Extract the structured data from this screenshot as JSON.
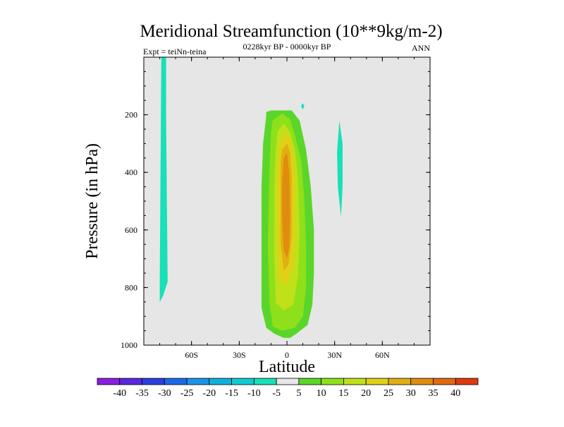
{
  "chart_data": {
    "type": "heatmap",
    "title": "Meridional Streamfunction (10**9kg/m-2)",
    "subtitle_left": "Expt = teiNn-teina",
    "subtitle_center": "0228kyr BP - 0000kyr BP",
    "subtitle_right": "ANN",
    "xlabel": "Latitude",
    "ylabel": "Pressure (in hPa)",
    "xlim": [
      -90,
      90
    ],
    "ylim": [
      0,
      1000
    ],
    "y_reversed": true,
    "x_ticks": [
      {
        "value": -60,
        "label": "60S"
      },
      {
        "value": -30,
        "label": "30S"
      },
      {
        "value": 0,
        "label": "0"
      },
      {
        "value": 30,
        "label": "30N"
      },
      {
        "value": 60,
        "label": "60N"
      }
    ],
    "y_ticks": [
      {
        "value": 200,
        "label": "200"
      },
      {
        "value": 400,
        "label": "400"
      },
      {
        "value": 600,
        "label": "600"
      },
      {
        "value": 800,
        "label": "800"
      },
      {
        "value": 1000,
        "label": "1000"
      }
    ],
    "background_color": "#e6e6e6",
    "levels": [
      {
        "label": "-40",
        "color": "#8a1ee0"
      },
      {
        "label": "-35",
        "color": "#5a28e0"
      },
      {
        "label": "-30",
        "color": "#2a40e0"
      },
      {
        "label": "-25",
        "color": "#1a6ae6"
      },
      {
        "label": "-20",
        "color": "#1a94e6"
      },
      {
        "label": "-15",
        "color": "#10b0dc"
      },
      {
        "label": "-10",
        "color": "#10ccd0"
      },
      {
        "label": "-5",
        "color": "#18e0b8"
      },
      {
        "label": "5",
        "color": "#e6e6e6"
      },
      {
        "label": "10",
        "color": "#5ad62a"
      },
      {
        "label": "15",
        "color": "#8ee01a"
      },
      {
        "label": "20",
        "color": "#c0e018"
      },
      {
        "label": "25",
        "color": "#e0d018"
      },
      {
        "label": "30",
        "color": "#e0b010"
      },
      {
        "label": "35",
        "color": "#e08c10"
      },
      {
        "label": "40",
        "color": "#e06a10"
      },
      {
        "label": "",
        "color": "#e03a10"
      }
    ],
    "regions": [
      {
        "name": "southern-negative-cell",
        "level": "-10 to -5",
        "color": "#18e0b8",
        "points": [
          [
            -79,
            0
          ],
          [
            -76,
            0
          ],
          [
            -76,
            200
          ],
          [
            -75.5,
            500
          ],
          [
            -75,
            780
          ],
          [
            -78,
            830
          ],
          [
            -80,
            850
          ],
          [
            -80,
            780
          ],
          [
            -79.5,
            400
          ]
        ]
      },
      {
        "name": "northern-negative-cell",
        "level": "-10 to -5",
        "color": "#18e0b8",
        "points": [
          [
            33,
            220
          ],
          [
            35,
            300
          ],
          [
            35,
            450
          ],
          [
            34,
            555
          ],
          [
            32,
            450
          ],
          [
            31.5,
            330
          ]
        ]
      },
      {
        "name": "small-negative-patch",
        "level": "-10 to -5",
        "color": "#18e0b8",
        "points": [
          [
            9.5,
            160
          ],
          [
            11,
            168
          ],
          [
            10,
            182
          ],
          [
            9,
            172
          ]
        ]
      },
      {
        "name": "positive-cell-10",
        "level": "5 to 10",
        "color": "#5ad62a",
        "points": [
          [
            -13,
            190
          ],
          [
            -10,
            185
          ],
          [
            -4,
            185
          ],
          [
            3,
            185
          ],
          [
            8,
            220
          ],
          [
            12,
            320
          ],
          [
            15,
            450
          ],
          [
            17,
            600
          ],
          [
            17,
            750
          ],
          [
            16,
            860
          ],
          [
            13,
            930
          ],
          [
            6,
            960
          ],
          [
            2,
            975
          ],
          [
            -2,
            975
          ],
          [
            -8,
            960
          ],
          [
            -13,
            940
          ],
          [
            -16,
            870
          ],
          [
            -16,
            700
          ],
          [
            -16,
            450
          ],
          [
            -15,
            300
          ],
          [
            -13,
            200
          ]
        ]
      },
      {
        "name": "positive-cell-15",
        "level": "10 to 15",
        "color": "#8ee01a",
        "points": [
          [
            -9,
            220
          ],
          [
            -3,
            195
          ],
          [
            2,
            215
          ],
          [
            5,
            270
          ],
          [
            9,
            360
          ],
          [
            11,
            500
          ],
          [
            12,
            650
          ],
          [
            12,
            800
          ],
          [
            10,
            900
          ],
          [
            5,
            940
          ],
          [
            -3,
            950
          ],
          [
            -9,
            935
          ],
          [
            -11,
            850
          ],
          [
            -12,
            650
          ],
          [
            -11,
            400
          ],
          [
            -10,
            260
          ]
        ]
      },
      {
        "name": "positive-cell-20",
        "level": "15 to 20",
        "color": "#c0e018",
        "points": [
          [
            -6,
            260
          ],
          [
            -2,
            230
          ],
          [
            2,
            260
          ],
          [
            5,
            320
          ],
          [
            7,
            420
          ],
          [
            8,
            600
          ],
          [
            7,
            760
          ],
          [
            4,
            860
          ],
          [
            -2,
            880
          ],
          [
            -7,
            855
          ],
          [
            -8,
            700
          ],
          [
            -8,
            450
          ],
          [
            -7,
            320
          ]
        ]
      },
      {
        "name": "positive-cell-25",
        "level": "20 to 25",
        "color": "#e0d018",
        "points": [
          [
            -4,
            290
          ],
          [
            0,
            260
          ],
          [
            3,
            300
          ],
          [
            5,
            400
          ],
          [
            5,
            600
          ],
          [
            4,
            730
          ],
          [
            0,
            790
          ],
          [
            -5,
            770
          ],
          [
            -6,
            600
          ],
          [
            -6,
            420
          ],
          [
            -5,
            330
          ]
        ]
      },
      {
        "name": "positive-cell-30",
        "level": "25 to 30",
        "color": "#e0b010",
        "points": [
          [
            -3,
            320
          ],
          [
            0,
            300
          ],
          [
            2,
            330
          ],
          [
            3,
            420
          ],
          [
            3,
            620
          ],
          [
            1,
            720
          ],
          [
            -2,
            740
          ],
          [
            -4,
            650
          ],
          [
            -4,
            450
          ],
          [
            -4,
            360
          ]
        ]
      },
      {
        "name": "positive-cell-35",
        "level": "30 to 35",
        "color": "#e08c10",
        "points": [
          [
            -2,
            350
          ],
          [
            0,
            330
          ],
          [
            1.5,
            400
          ],
          [
            2,
            550
          ],
          [
            1.5,
            660
          ],
          [
            0,
            700
          ],
          [
            -2,
            670
          ],
          [
            -3,
            560
          ],
          [
            -3,
            430
          ]
        ]
      }
    ]
  }
}
